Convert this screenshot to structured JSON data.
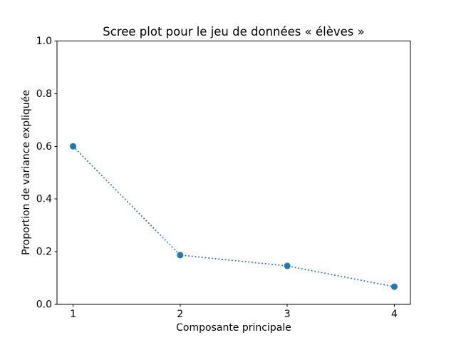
{
  "chart_data": {
    "type": "line",
    "title": "Scree plot pour le jeu de données « élèves »",
    "xlabel": "Composante principale",
    "ylabel": "Proportion de variance expliquée",
    "x": [
      1,
      2,
      3,
      4
    ],
    "y": [
      0.6,
      0.187,
      0.146,
      0.067
    ],
    "series": [
      {
        "name": "Proportion de variance expliquée",
        "x": [
          1,
          2,
          3,
          4
        ],
        "values": [
          0.6,
          0.187,
          0.146,
          0.067
        ]
      }
    ],
    "xlim": [
      0.85,
      4.15
    ],
    "ylim": [
      0.0,
      1.0
    ],
    "xticks": [
      1,
      2,
      3,
      4
    ],
    "xtick_labels": [
      "1",
      "2",
      "3",
      "4"
    ],
    "yticks": [
      0.0,
      0.2,
      0.4,
      0.6,
      0.8,
      1.0
    ],
    "ytick_labels": [
      "0.0",
      "0.2",
      "0.4",
      "0.6",
      "0.8",
      "1.0"
    ],
    "line_style": "dotted",
    "marker": "circle",
    "line_color": "#1f77b4",
    "marker_color": "#1f77b4",
    "frame_color": "#000000",
    "background_color": "#ffffff",
    "grid": false,
    "legend": "none"
  }
}
